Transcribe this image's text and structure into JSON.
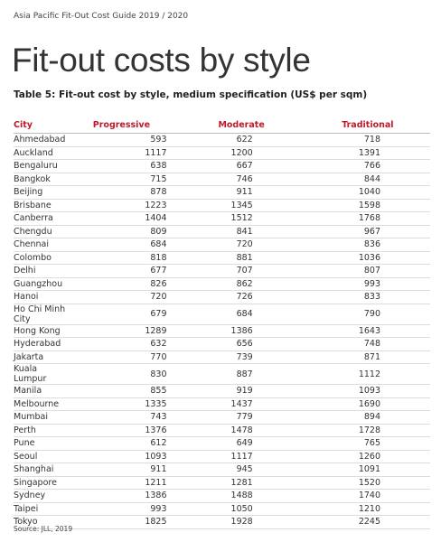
{
  "header": {
    "title": "Asia Pacific Fit-Out Cost Guide 2019 / 2020"
  },
  "page_title": "Fit-out costs by style",
  "table": {
    "caption": "Table 5: Fit-out cost by style, medium specification (US$ per sqm)",
    "columns": [
      "City",
      "Progressive",
      "Moderate",
      "Traditional"
    ],
    "rows": [
      [
        "Ahmedabad",
        593,
        622,
        718
      ],
      [
        "Auckland",
        1117,
        1200,
        1391
      ],
      [
        "Bengaluru",
        638,
        667,
        766
      ],
      [
        "Bangkok",
        715,
        746,
        844
      ],
      [
        "Beijing",
        878,
        911,
        1040
      ],
      [
        "Brisbane",
        1223,
        1345,
        1598
      ],
      [
        "Canberra",
        1404,
        1512,
        1768
      ],
      [
        "Chengdu",
        809,
        841,
        967
      ],
      [
        "Chennai",
        684,
        720,
        836
      ],
      [
        "Colombo",
        818,
        881,
        1036
      ],
      [
        "Delhi",
        677,
        707,
        807
      ],
      [
        "Guangzhou",
        826,
        862,
        993
      ],
      [
        "Hanoi",
        720,
        726,
        833
      ],
      [
        "Ho Chi Minh City",
        679,
        684,
        790
      ],
      [
        "Hong Kong",
        1289,
        1386,
        1643
      ],
      [
        "Hyderabad",
        632,
        656,
        748
      ],
      [
        "Jakarta",
        770,
        739,
        871
      ],
      [
        "Kuala Lumpur",
        830,
        887,
        1112
      ],
      [
        "Manila",
        855,
        919,
        1093
      ],
      [
        "Melbourne",
        1335,
        1437,
        1690
      ],
      [
        "Mumbai",
        743,
        779,
        894
      ],
      [
        "Perth",
        1376,
        1478,
        1728
      ],
      [
        "Pune",
        612,
        649,
        765
      ],
      [
        "Seoul",
        1093,
        1117,
        1260
      ],
      [
        "Shanghai",
        911,
        945,
        1091
      ],
      [
        "Singapore",
        1211,
        1281,
        1520
      ],
      [
        "Sydney",
        1386,
        1488,
        1740
      ],
      [
        "Taipei",
        993,
        1050,
        1210
      ],
      [
        "Tokyo",
        1825,
        1928,
        2245
      ]
    ]
  },
  "source": "Source: JLL, 2019"
}
